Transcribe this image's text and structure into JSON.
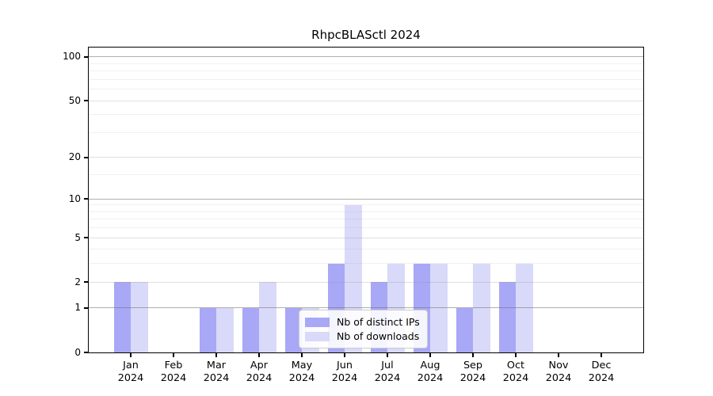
{
  "title": "RhpcBLASctl 2024",
  "chart_data": {
    "type": "bar",
    "title": "RhpcBLASctl 2024",
    "categories": [
      {
        "month": "Jan",
        "year": "2024"
      },
      {
        "month": "Feb",
        "year": "2024"
      },
      {
        "month": "Mar",
        "year": "2024"
      },
      {
        "month": "Apr",
        "year": "2024"
      },
      {
        "month": "May",
        "year": "2024"
      },
      {
        "month": "Jun",
        "year": "2024"
      },
      {
        "month": "Jul",
        "year": "2024"
      },
      {
        "month": "Aug",
        "year": "2024"
      },
      {
        "month": "Sep",
        "year": "2024"
      },
      {
        "month": "Oct",
        "year": "2024"
      },
      {
        "month": "Nov",
        "year": "2024"
      },
      {
        "month": "Dec",
        "year": "2024"
      }
    ],
    "series": [
      {
        "name": "Nb of distinct IPs",
        "slug": "distinct-ips",
        "color": "#a8a8f6",
        "values": [
          2,
          0,
          1,
          1,
          1,
          3,
          2,
          3,
          1,
          2,
          0,
          0
        ]
      },
      {
        "name": "Nb of downloads",
        "slug": "downloads",
        "color": "#d9d9f9",
        "values": [
          2,
          0,
          1,
          2,
          1,
          9,
          3,
          3,
          3,
          3,
          0,
          0
        ]
      }
    ],
    "y_axis": {
      "scale": "log1p",
      "tick_values": [
        0,
        1,
        2,
        5,
        10,
        20,
        50,
        100
      ],
      "emphasized_gridlines": [
        1,
        10,
        100
      ],
      "light_gridlines": [
        2,
        5,
        20,
        50
      ],
      "minor_gridlines": [
        3,
        4,
        6,
        7,
        8,
        9,
        15,
        30,
        40,
        60,
        70,
        80,
        90
      ],
      "max": 116
    },
    "legend": {
      "position": "lower-center",
      "entries": [
        "Nb of distinct IPs",
        "Nb of downloads"
      ]
    },
    "grid": true,
    "xlabel": "",
    "ylabel": ""
  },
  "colors": {
    "background": "#ffffff",
    "bar_distinct_ips": "#a8a8f6",
    "bar_downloads": "#d9d9f9",
    "axis_line": "#000000",
    "gridline_emphasized": "rgba(110,110,110,0.55)",
    "gridline_light": "rgba(150,150,150,0.30)",
    "gridline_minor": "rgba(165,165,165,0.17)",
    "legend_border": "#cccccc",
    "legend_background": "rgba(255,255,255,0.88)"
  }
}
